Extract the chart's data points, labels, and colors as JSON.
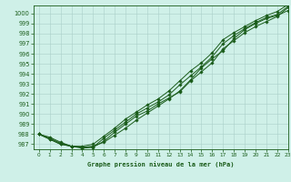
{
  "xlabel": "Graphe pression niveau de la mer (hPa)",
  "xlim": [
    -0.5,
    23
  ],
  "ylim": [
    986.5,
    1000.8
  ],
  "yticks": [
    987,
    988,
    989,
    990,
    991,
    992,
    993,
    994,
    995,
    996,
    997,
    998,
    999,
    1000
  ],
  "xticks": [
    0,
    1,
    2,
    3,
    4,
    5,
    6,
    7,
    8,
    9,
    10,
    11,
    12,
    13,
    14,
    15,
    16,
    17,
    18,
    19,
    20,
    21,
    22,
    23
  ],
  "bg_color": "#cff0e8",
  "line_color": "#1a5c1a",
  "grid_color": "#aacfc8",
  "curves": [
    [
      988.0,
      987.7,
      987.2,
      986.8,
      986.7,
      986.8,
      987.2,
      987.9,
      988.6,
      989.4,
      990.1,
      990.8,
      991.5,
      992.3,
      993.4,
      994.6,
      995.5,
      996.3,
      997.5,
      998.4,
      999.0,
      999.5,
      999.8,
      1000.3
    ],
    [
      988.0,
      987.5,
      987.0,
      986.8,
      986.7,
      986.7,
      987.3,
      988.2,
      989.0,
      989.8,
      990.3,
      991.0,
      991.6,
      992.2,
      993.3,
      994.2,
      995.1,
      996.5,
      997.3,
      998.1,
      998.7,
      999.2,
      999.7,
      1000.6
    ],
    [
      988.0,
      987.6,
      987.1,
      986.8,
      986.6,
      986.7,
      987.6,
      988.4,
      989.2,
      990.0,
      990.6,
      991.2,
      991.9,
      992.9,
      993.8,
      994.7,
      995.7,
      997.0,
      997.8,
      998.5,
      999.1,
      999.6,
      999.9,
      1000.7
    ],
    [
      988.0,
      987.5,
      987.0,
      986.8,
      986.8,
      987.0,
      987.8,
      988.6,
      989.5,
      990.2,
      990.9,
      991.5,
      992.3,
      993.3,
      994.3,
      995.1,
      996.1,
      997.4,
      998.1,
      998.7,
      999.3,
      999.8,
      1000.2,
      1000.9
    ]
  ]
}
